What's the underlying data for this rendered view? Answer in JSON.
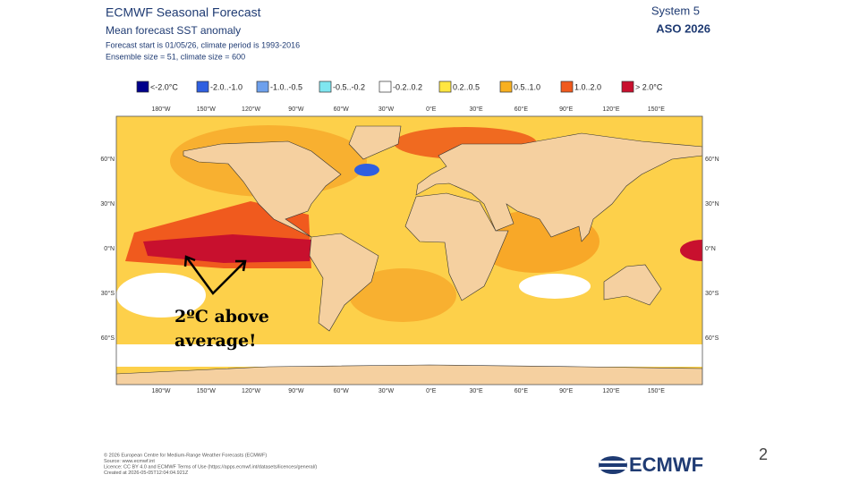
{
  "header": {
    "title": "ECMWF Seasonal Forecast",
    "subtitle": "Mean forecast SST anomaly",
    "forecast_line": "Forecast start is 01/05/26, climate period is 1993-2016",
    "ensemble_line": "Ensemble size = 51, climate size = 600",
    "system": "System 5",
    "period": "ASO 2026"
  },
  "legend": [
    {
      "label": "<-2.0°C",
      "color": "#00008b"
    },
    {
      "label": "-2.0..-1.0",
      "color": "#2f5fe0"
    },
    {
      "label": "-1.0..-0.5",
      "color": "#6ea0ec"
    },
    {
      "label": "-0.5..-0.2",
      "color": "#7fe6f0"
    },
    {
      "label": "-0.2..0.2",
      "color": "#ffffff"
    },
    {
      "label": "0.2..0.5",
      "color": "#ffe640"
    },
    {
      "label": "0.5..1.0",
      "color": "#f8b020"
    },
    {
      "label": "1.0..2.0",
      "color": "#f05a1e"
    },
    {
      "label": "> 2.0°C",
      "color": "#c8102e"
    }
  ],
  "map": {
    "lon_labels": [
      "180°W",
      "150°W",
      "120°W",
      "90°W",
      "60°W",
      "30°W",
      "0°E",
      "30°E",
      "60°E",
      "90°E",
      "120°E",
      "150°E"
    ],
    "lat_labels": [
      "60°N",
      "30°N",
      "0°N",
      "30°S",
      "60°S"
    ]
  },
  "annotation": [
    "2ºC above",
    "average!"
  ],
  "footer": [
    "© 2026 European Centre for Medium-Range Weather Forecasts (ECMWF)",
    "Source: www.ecmwf.int",
    "Licence: CC BY 4.0 and ECMWF Terms of Use (https://apps.ecmwf.int/datasets/licences/general/)",
    "Created at 2026-05-05T12:04:04.921Z"
  ],
  "page_number": "2",
  "logo": "ECMWF"
}
